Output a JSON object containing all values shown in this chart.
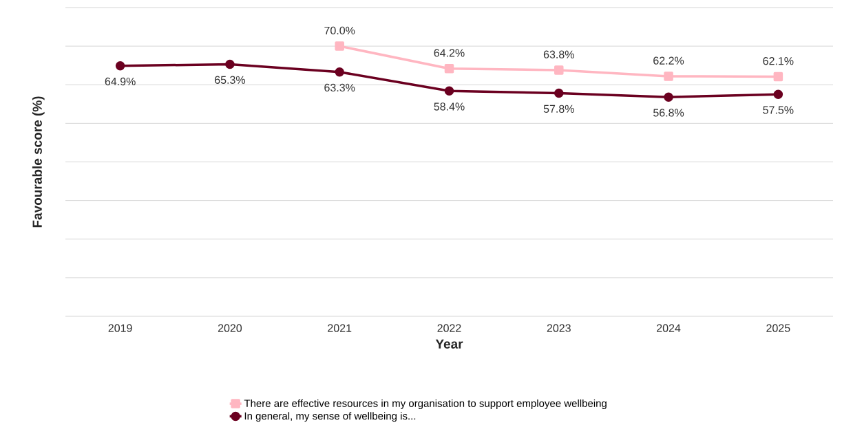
{
  "chart_data": {
    "type": "line",
    "xlabel": "Year",
    "ylabel": "Favourable score (%)",
    "categories": [
      "2019",
      "2020",
      "2021",
      "2022",
      "2023",
      "2024",
      "2025"
    ],
    "ylim": [
      0,
      80
    ],
    "yticks": [
      {
        "value": 0,
        "label": null
      },
      {
        "value": 10,
        "label": null
      },
      {
        "value": 20,
        "label": null
      },
      {
        "value": 30,
        "label": null
      },
      {
        "value": 40,
        "label": null
      },
      {
        "value": 50,
        "label": null
      },
      {
        "value": 60,
        "label": null
      },
      {
        "value": 70,
        "label": null
      },
      {
        "value": 80,
        "label": null
      }
    ],
    "tick_labels": "x",
    "grid": "y",
    "legend": "bottom",
    "line_style": "solid",
    "series": [
      {
        "name": "There are effective resources in my organisation to support employee wellbeing",
        "color": "#ffb6c1",
        "marker": "square",
        "values": [
          null,
          null,
          70.0,
          64.2,
          63.8,
          62.2,
          62.1
        ],
        "value_labels": [
          null,
          null,
          "70.0%",
          "64.2%",
          "63.8%",
          "62.2%",
          "62.1%"
        ]
      },
      {
        "name": "In general, my sense of wellbeing is...",
        "color": "#6b0020",
        "marker": "circle",
        "values": [
          64.9,
          65.3,
          63.3,
          58.4,
          57.8,
          56.8,
          57.5
        ],
        "value_labels": [
          "64.9%",
          "65.3%",
          "63.3%",
          "58.4%",
          "57.8%",
          "56.8%",
          "57.5%"
        ]
      }
    ]
  }
}
